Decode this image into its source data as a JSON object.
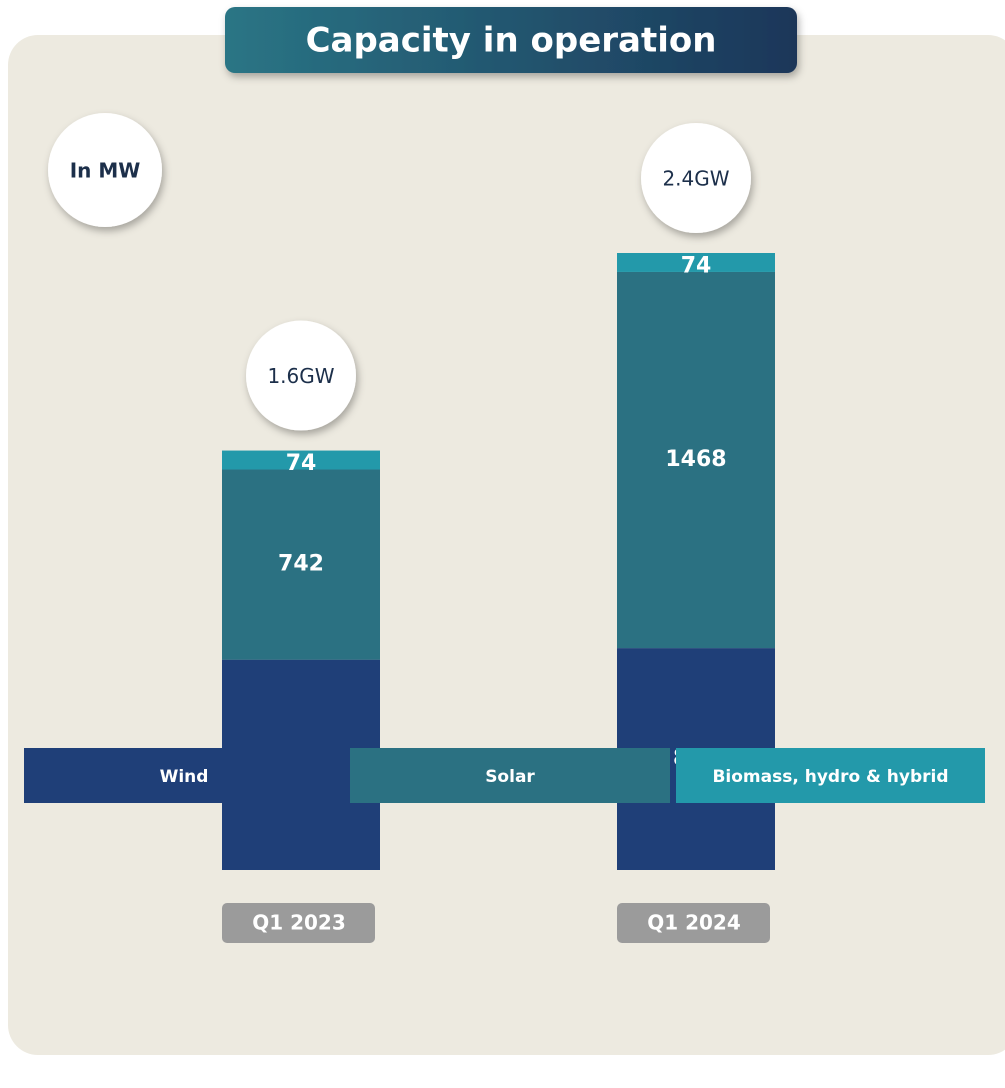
{
  "chart_data": {
    "type": "stacked_bar",
    "title": "Capacity in operation",
    "unit_label": "In MW",
    "categories": [
      "Q1 2023",
      "Q1 2024"
    ],
    "series": [
      {
        "name": "Wind",
        "color": "#1f3f78",
        "values": [
          821,
          866
        ]
      },
      {
        "name": "Solar",
        "color": "#2b7182",
        "values": [
          742,
          1468
        ]
      },
      {
        "name": "Biomass, hydro & hybrid",
        "color": "#2399aa",
        "values": [
          74,
          74
        ]
      }
    ],
    "total_labels": [
      "1.6GW",
      "2.4GW"
    ]
  }
}
